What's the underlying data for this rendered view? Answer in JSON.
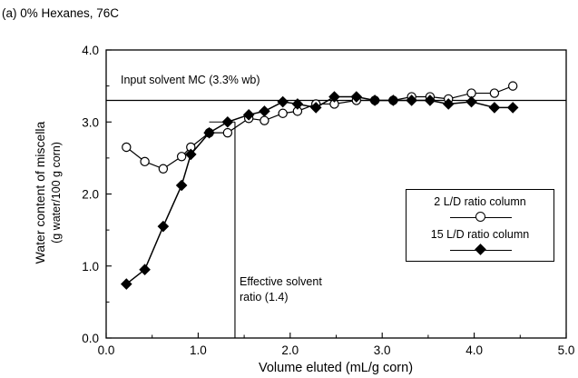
{
  "panel_label": "(a) 0% Hexanes, 76C",
  "chart_data": {
    "type": "line",
    "xlabel": "Volume eluted (mL/g corn)",
    "ylabel_line1": "Water content of miscella",
    "ylabel_line2": "(g water/100 g corn)",
    "xlim": [
      0.0,
      5.0
    ],
    "ylim": [
      0.0,
      4.0
    ],
    "x_ticks": [
      "0.0",
      "1.0",
      "2.0",
      "3.0",
      "4.0",
      "5.0"
    ],
    "y_ticks": [
      "0.0",
      "1.0",
      "2.0",
      "3.0",
      "4.0"
    ],
    "grid": false,
    "legend_position": "right",
    "series": [
      {
        "name": "2 L/D ratio column",
        "marker": "open-circle",
        "points": [
          [
            0.22,
            2.65
          ],
          [
            0.42,
            2.45
          ],
          [
            0.62,
            2.35
          ],
          [
            0.82,
            2.52
          ],
          [
            0.92,
            2.65
          ],
          [
            1.12,
            2.85
          ],
          [
            1.32,
            2.85
          ],
          [
            1.55,
            3.05
          ],
          [
            1.72,
            3.02
          ],
          [
            1.92,
            3.12
          ],
          [
            2.08,
            3.15
          ],
          [
            2.28,
            3.25
          ],
          [
            2.48,
            3.25
          ],
          [
            2.72,
            3.3
          ],
          [
            2.92,
            3.3
          ],
          [
            3.12,
            3.3
          ],
          [
            3.32,
            3.35
          ],
          [
            3.52,
            3.35
          ],
          [
            3.72,
            3.32
          ],
          [
            3.97,
            3.4
          ],
          [
            4.22,
            3.4
          ],
          [
            4.42,
            3.5
          ]
        ]
      },
      {
        "name": "15 L/D ratio column",
        "marker": "filled-diamond",
        "points": [
          [
            0.22,
            0.75
          ],
          [
            0.42,
            0.95
          ],
          [
            0.62,
            1.55
          ],
          [
            0.82,
            2.12
          ],
          [
            0.92,
            2.55
          ],
          [
            1.12,
            2.85
          ],
          [
            1.32,
            3.0
          ],
          [
            1.55,
            3.1
          ],
          [
            1.72,
            3.15
          ],
          [
            1.92,
            3.28
          ],
          [
            2.08,
            3.25
          ],
          [
            2.28,
            3.2
          ],
          [
            2.48,
            3.35
          ],
          [
            2.72,
            3.35
          ],
          [
            2.92,
            3.3
          ],
          [
            3.12,
            3.3
          ],
          [
            3.32,
            3.3
          ],
          [
            3.52,
            3.3
          ],
          [
            3.72,
            3.25
          ],
          [
            3.97,
            3.28
          ],
          [
            4.22,
            3.2
          ],
          [
            4.42,
            3.2
          ]
        ]
      }
    ],
    "reference_lines": {
      "horizontal": {
        "y": 3.3,
        "label": "Input solvent MC (3.3% wb)"
      },
      "vertical": {
        "x": 1.4,
        "ymax": 3.0,
        "label_line1": "Effective solvent",
        "label_line2": "ratio (1.4)"
      }
    }
  }
}
